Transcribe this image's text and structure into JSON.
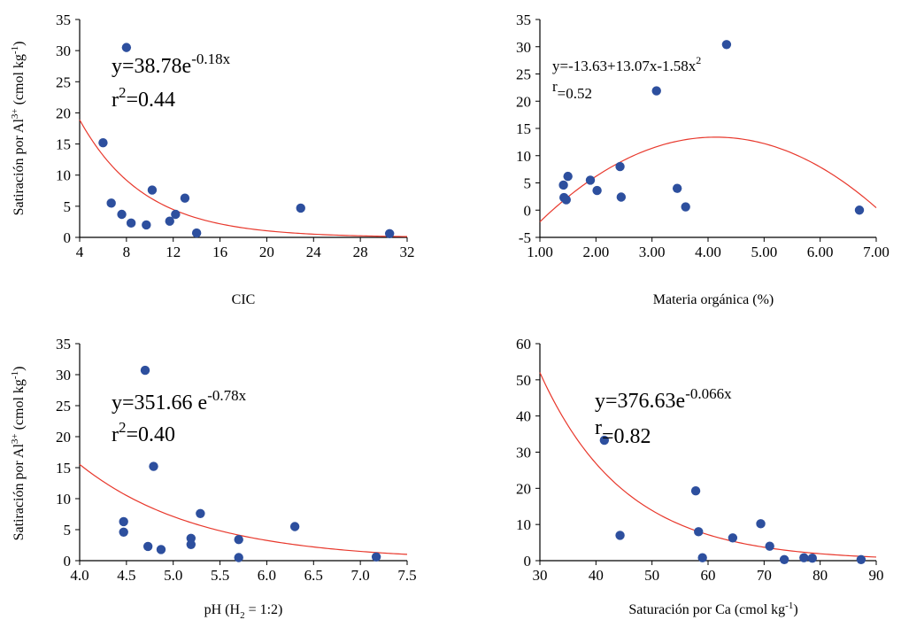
{
  "chart_data": [
    {
      "type": "scatter",
      "xlabel": "CIC",
      "ylabel_parts": {
        "prefix": "Satiración por Al",
        "sup": "3+",
        "suffix": " (cmol kg",
        "unit_sup": "-1",
        "end": ")"
      },
      "xlim": [
        4,
        32
      ],
      "ylim": [
        0,
        35
      ],
      "xticks": [
        "4",
        "8",
        "12",
        "16",
        "20",
        "24",
        "28",
        "32"
      ],
      "yticks": [
        "0",
        "5",
        "10",
        "15",
        "20",
        "25",
        "30",
        "35"
      ],
      "equation": {
        "base": "y=38.78e",
        "exponent": "-0.18x"
      },
      "fit_stat": {
        "base": "r",
        "sup": "2",
        "rest": "=0.44"
      },
      "fit": {
        "model": "exponential",
        "a": 38.78,
        "b": -0.18
      },
      "points": [
        [
          6,
          15.2
        ],
        [
          6.7,
          5.5
        ],
        [
          7.6,
          3.7
        ],
        [
          8,
          30.5
        ],
        [
          8.4,
          2.3
        ],
        [
          9.7,
          2
        ],
        [
          10.2,
          7.6
        ],
        [
          11.7,
          2.6
        ],
        [
          12.2,
          3.7
        ],
        [
          13,
          6.3
        ],
        [
          14,
          0.7
        ],
        [
          22.9,
          4.7
        ],
        [
          30.5,
          0.6
        ]
      ]
    },
    {
      "type": "scatter",
      "xlabel": "Materia orgánica (%)",
      "xlim": [
        1,
        7
      ],
      "ylim": [
        -5,
        35
      ],
      "xticks": [
        "1.00",
        "2.00",
        "3.00",
        "4.00",
        "5.00",
        "6.00",
        "7.00"
      ],
      "yticks": [
        "-5",
        "0",
        "5",
        "10",
        "15",
        "20",
        "25",
        "30",
        "35"
      ],
      "equation": {
        "base": "y=-13.63+13.07x-1.58x",
        "exponent": "2"
      },
      "fit_stat": {
        "base": "r",
        "sup": "",
        "rest": "=0.52"
      },
      "fit": {
        "model": "quadratic",
        "c0": -13.63,
        "c1": 13.07,
        "c2": -1.58
      },
      "points": [
        [
          1.42,
          4.6
        ],
        [
          1.43,
          2.3
        ],
        [
          1.47,
          1.9
        ],
        [
          1.5,
          6.2
        ],
        [
          1.9,
          5.5
        ],
        [
          2.02,
          3.6
        ],
        [
          2.43,
          8
        ],
        [
          2.45,
          2.4
        ],
        [
          3.08,
          21.9
        ],
        [
          3.45,
          4
        ],
        [
          3.6,
          0.6
        ],
        [
          4.33,
          30.4
        ],
        [
          6.7,
          0
        ]
      ]
    },
    {
      "type": "scatter",
      "xlabel_parts": {
        "prefix": "pH (H",
        "sub": "2",
        "suffix": " = 1:2)"
      },
      "ylabel_parts": {
        "prefix": "Satiración por Al",
        "sup": "3+",
        "suffix": " (cmol kg",
        "unit_sup": "-1",
        "end": ")"
      },
      "xlim": [
        4,
        7.5
      ],
      "ylim": [
        0,
        35
      ],
      "xticks": [
        "4.0",
        "4.5",
        "5.0",
        "5.5",
        "6.0",
        "6.5",
        "7.0",
        "7.5"
      ],
      "yticks": [
        "0",
        "5",
        "10",
        "15",
        "20",
        "25",
        "30",
        "35"
      ],
      "equation": {
        "base": "y=351.66 e",
        "exponent": "-0.78x"
      },
      "fit_stat": {
        "base": "r",
        "sup": "2",
        "rest": "=0.40"
      },
      "fit": {
        "model": "exponential",
        "a": 351.66,
        "b": -0.78
      },
      "points": [
        [
          4.47,
          6.3
        ],
        [
          4.47,
          4.6
        ],
        [
          4.7,
          30.7
        ],
        [
          4.73,
          2.3
        ],
        [
          4.79,
          15.2
        ],
        [
          4.87,
          1.8
        ],
        [
          5.19,
          3.6
        ],
        [
          5.19,
          2.6
        ],
        [
          5.29,
          7.6
        ],
        [
          5.7,
          3.4
        ],
        [
          5.7,
          0.5
        ],
        [
          6.3,
          5.5
        ],
        [
          7.17,
          0.6
        ]
      ]
    },
    {
      "type": "scatter",
      "xlabel_parts": {
        "prefix": "Saturación por Ca (cmol kg",
        "sup": "-1",
        "suffix": ")"
      },
      "xlim": [
        30,
        90
      ],
      "ylim": [
        0,
        60
      ],
      "xticks": [
        "30",
        "40",
        "50",
        "60",
        "70",
        "80",
        "90"
      ],
      "yticks": [
        "0",
        "10",
        "20",
        "30",
        "40",
        "50",
        "60"
      ],
      "equation": {
        "base": "y=376.63e",
        "exponent": "-0.066x"
      },
      "fit_stat": {
        "base": "r",
        "sup": "",
        "rest": "=0.82"
      },
      "fit": {
        "model": "exponential",
        "a": 376.63,
        "b": -0.066
      },
      "points": [
        [
          41.5,
          33.3
        ],
        [
          44.3,
          7
        ],
        [
          57.8,
          19.3
        ],
        [
          58.3,
          8
        ],
        [
          59,
          0.8
        ],
        [
          64.4,
          6.3
        ],
        [
          69.4,
          10.2
        ],
        [
          71,
          4
        ],
        [
          73.6,
          0.3
        ],
        [
          77.1,
          0.8
        ],
        [
          78.6,
          0.7
        ],
        [
          87.3,
          0.3
        ]
      ]
    }
  ]
}
